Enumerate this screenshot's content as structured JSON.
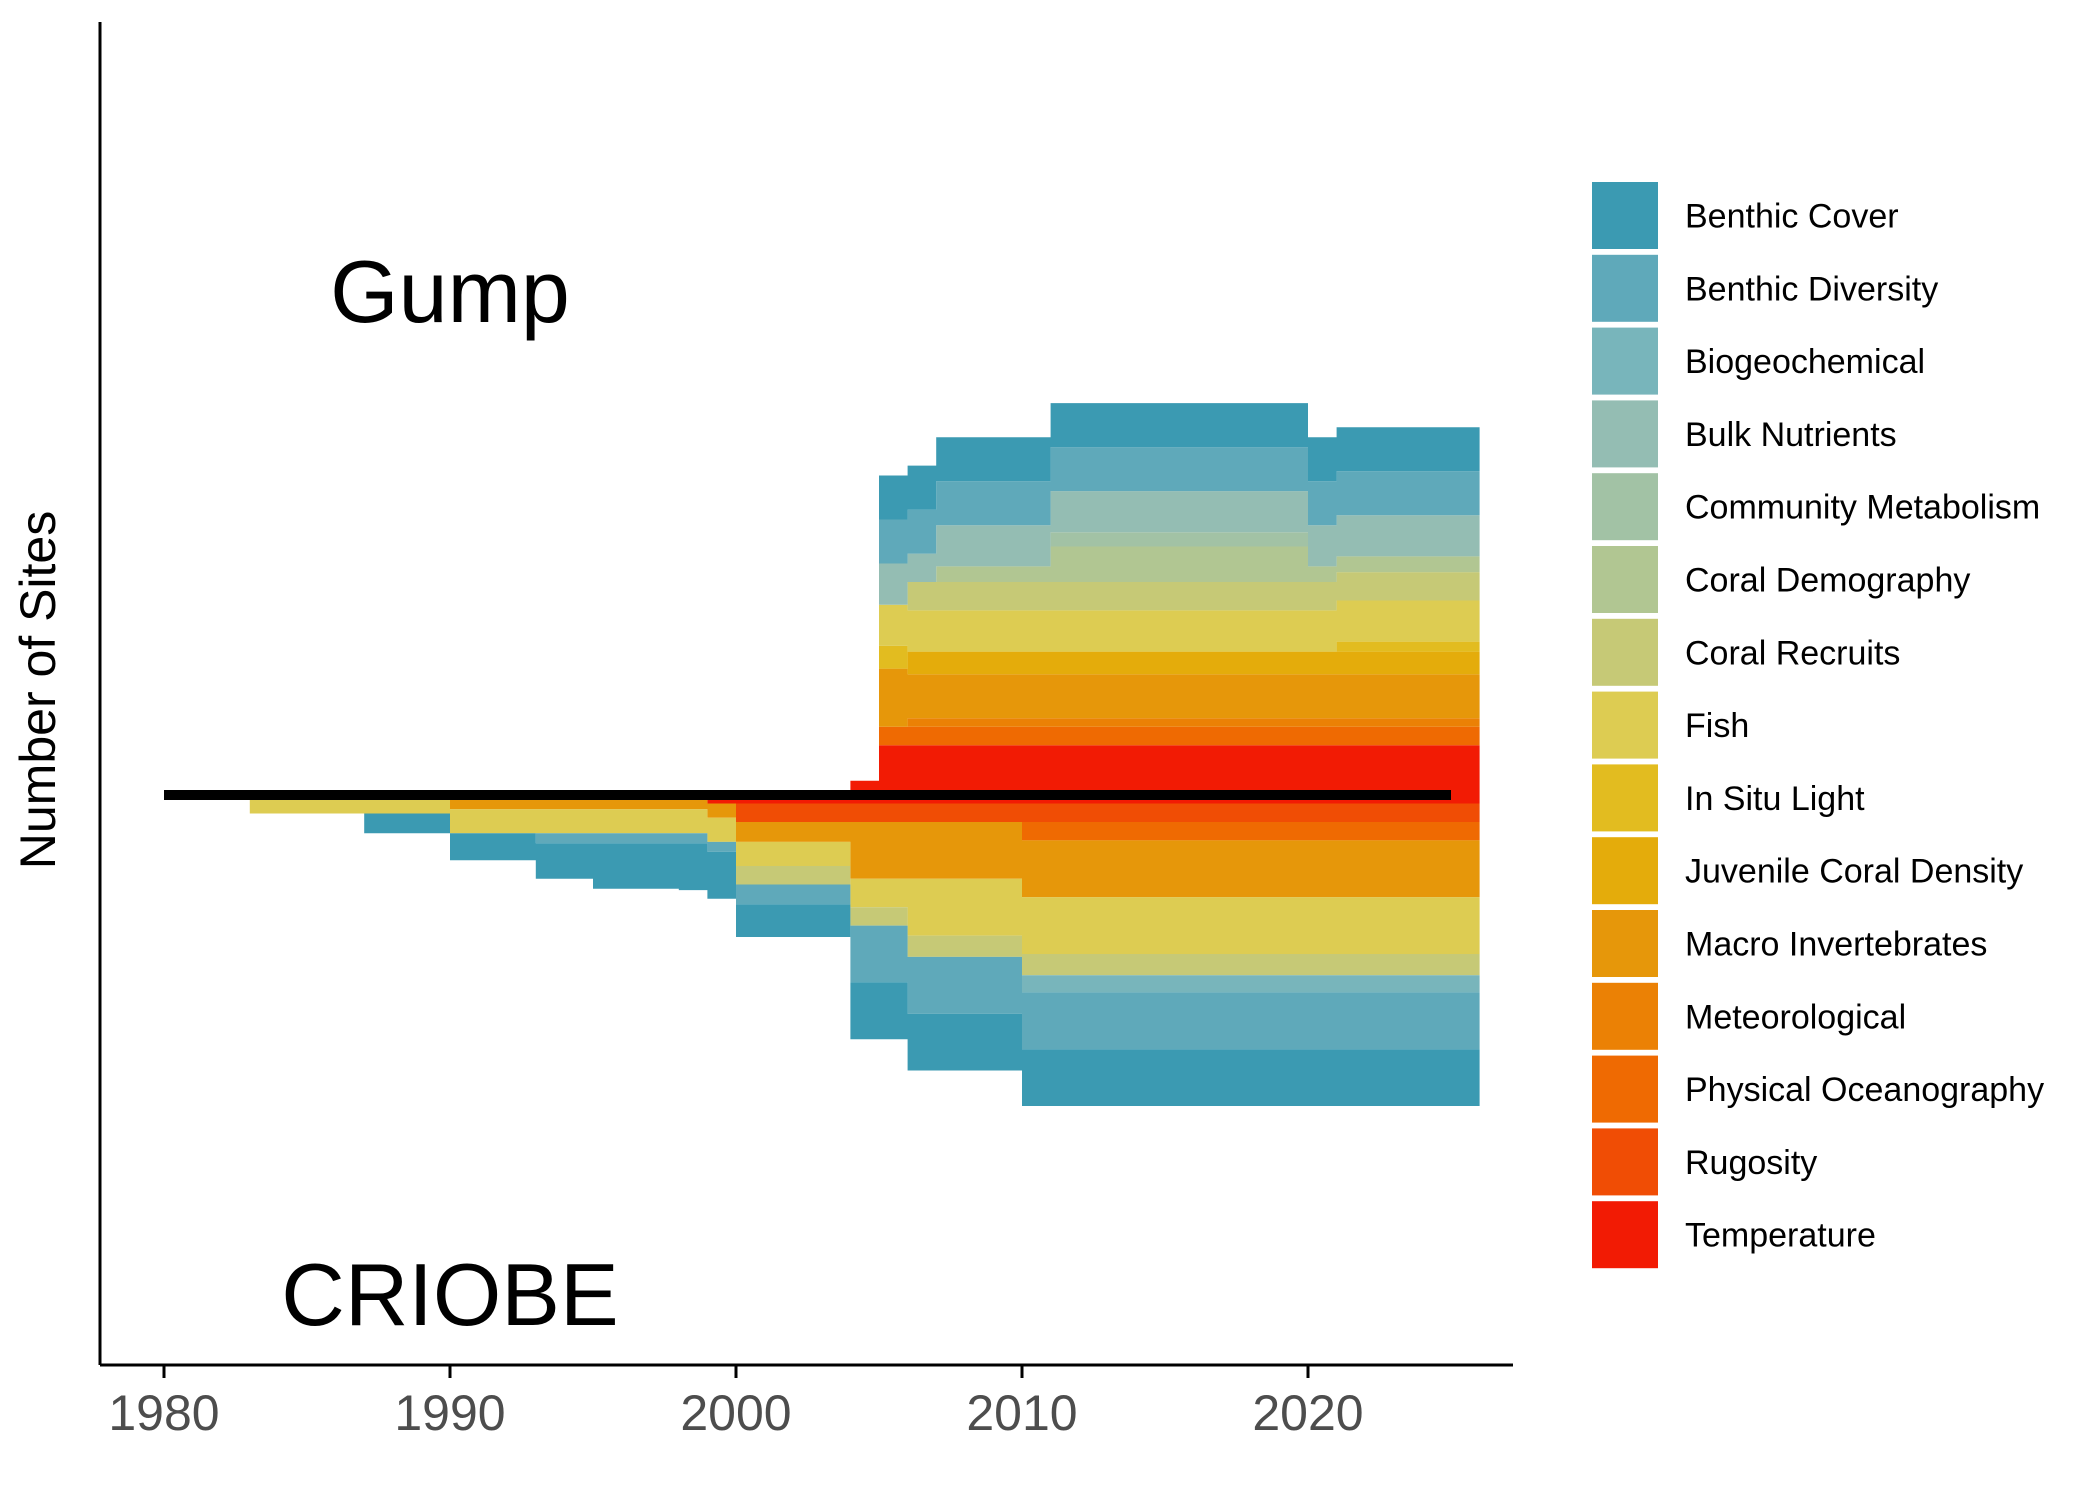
{
  "chart_data": {
    "type": "area",
    "subtype": "mirrored stacked step area",
    "title": "",
    "xlabel": "",
    "ylabel": "Number of Sites",
    "xlim": [
      1977.5,
      2027.5
    ],
    "xticks": [
      1980,
      1990,
      2000,
      2010,
      2020
    ],
    "ylim": [
      -50,
      50
    ],
    "ytick_labels_shown": false,
    "grid": false,
    "legend_position": "right",
    "baseline": {
      "y": 0,
      "x_start": 1980,
      "x_end": 2025
    },
    "annotations": [
      {
        "text": "Gump",
        "region": "upper"
      },
      {
        "text": "CRIOBE",
        "region": "lower"
      }
    ],
    "legend": [
      {
        "name": "Benthic Cover",
        "color": "#3b9ab2"
      },
      {
        "name": "Benthic Diversity",
        "color": "#5fa9ba"
      },
      {
        "name": "Biogeochemical",
        "color": "#78b5bb"
      },
      {
        "name": "Bulk Nutrients",
        "color": "#94bdb3"
      },
      {
        "name": "Community Metabolism",
        "color": "#a2c2a5"
      },
      {
        "name": "Coral Demography",
        "color": "#b1c692"
      },
      {
        "name": "Coral Recruits",
        "color": "#c6c976"
      },
      {
        "name": "Fish",
        "color": "#ddcc52"
      },
      {
        "name": "In Situ Light",
        "color": "#e2bc20"
      },
      {
        "name": "Juvenile Coral Density",
        "color": "#e4ac0b"
      },
      {
        "name": "Macro Invertebrates",
        "color": "#e6970a"
      },
      {
        "name": "Meteorological",
        "color": "#eb8105"
      },
      {
        "name": "Physical Oceanography",
        "color": "#ef6a02"
      },
      {
        "name": "Rugosity",
        "color": "#f04d05"
      },
      {
        "name": "Temperature",
        "color": "#f21b04"
      }
    ],
    "panels": [
      {
        "name": "Gump",
        "direction": "up",
        "x": [
          2004,
          2005,
          2006,
          2007,
          2008,
          2009,
          2010,
          2011,
          2012,
          2013,
          2014,
          2015,
          2016,
          2017,
          2018,
          2019,
          2020,
          2021,
          2022,
          2023,
          2024,
          2025
        ],
        "series": [
          {
            "name": "Temperature",
            "values": [
              1,
              3.5,
              3.5,
              3.5,
              3.5,
              3.5,
              3.5,
              3.5,
              3.5,
              3.5,
              3.5,
              3.5,
              3.5,
              3.5,
              3.5,
              3.5,
              3.5,
              3.5,
              3.5,
              3.5,
              3.5,
              3.5
            ]
          },
          {
            "name": "Physical Oceanography",
            "values": [
              0,
              1.3,
              1.3,
              1.3,
              1.3,
              1.3,
              1.3,
              1.3,
              1.3,
              1.3,
              1.3,
              1.3,
              1.3,
              1.3,
              1.3,
              1.3,
              1.3,
              1.3,
              1.3,
              1.3,
              1.3,
              1.3
            ]
          },
          {
            "name": "Meteorological",
            "values": [
              0,
              0,
              0.6,
              0.6,
              0.6,
              0.6,
              0.6,
              0.6,
              0.6,
              0.6,
              0.6,
              0.6,
              0.6,
              0.6,
              0.6,
              0.6,
              0.6,
              0.6,
              0.6,
              0.6,
              0.6,
              0.6
            ]
          },
          {
            "name": "Macro Invertebrates",
            "values": [
              0,
              4.1,
              3.1,
              3.1,
              3.1,
              3.1,
              3.1,
              3.1,
              3.1,
              3.1,
              3.1,
              3.1,
              3.1,
              3.1,
              3.1,
              3.1,
              3.1,
              3.1,
              3.1,
              3.1,
              3.1,
              3.1
            ]
          },
          {
            "name": "Juvenile Coral Density",
            "values": [
              0,
              0,
              1.6,
              1.6,
              1.6,
              1.6,
              1.6,
              1.6,
              1.6,
              1.6,
              1.6,
              1.6,
              1.6,
              1.6,
              1.6,
              1.6,
              1.6,
              1.6,
              1.6,
              1.6,
              1.6,
              1.6
            ]
          },
          {
            "name": "In Situ Light",
            "values": [
              0,
              1.6,
              0,
              0,
              0,
              0,
              0,
              0,
              0,
              0,
              0,
              0,
              0,
              0,
              0,
              0,
              0,
              0.7,
              0.7,
              0.7,
              0.7,
              0.7
            ]
          },
          {
            "name": "Fish",
            "values": [
              0,
              2.9,
              2.9,
              2.9,
              2.9,
              2.9,
              2.9,
              2.9,
              2.9,
              2.9,
              2.9,
              2.9,
              2.9,
              2.9,
              2.9,
              2.9,
              2.9,
              2.9,
              2.9,
              2.9,
              2.9,
              2.9
            ]
          },
          {
            "name": "Coral Recruits",
            "values": [
              0,
              0,
              2,
              2,
              2,
              2,
              2,
              2,
              2,
              2,
              2,
              2,
              2,
              2,
              2,
              2,
              2,
              2,
              2,
              2,
              2,
              2
            ]
          },
          {
            "name": "Coral Demography",
            "values": [
              0,
              0,
              0,
              1.1,
              1.1,
              1.1,
              1.1,
              2.5,
              2.5,
              2.5,
              2.5,
              2.5,
              2.5,
              2.5,
              2.5,
              2.5,
              1.1,
              1.1,
              1.1,
              1.1,
              1.1,
              1.1
            ]
          },
          {
            "name": "Community Metabolism",
            "values": [
              0,
              0,
              0,
              0,
              0,
              0,
              0,
              1,
              1,
              1,
              1,
              1,
              1,
              1,
              1,
              1,
              0,
              0,
              0,
              0,
              0,
              0
            ]
          },
          {
            "name": "Bulk Nutrients",
            "values": [
              0,
              2.9,
              2,
              2.9,
              2.9,
              2.9,
              2.9,
              2.9,
              2.9,
              2.9,
              2.9,
              2.9,
              2.9,
              2.9,
              2.9,
              2.9,
              2.9,
              2.9,
              2.9,
              2.9,
              2.9,
              2.9
            ]
          },
          {
            "name": "Biogeochemical",
            "values": [
              0,
              0,
              0,
              0,
              0,
              0,
              0,
              0,
              0,
              0,
              0,
              0,
              0,
              0,
              0,
              0,
              0,
              0,
              0,
              0,
              0,
              0
            ]
          },
          {
            "name": "Benthic Diversity",
            "values": [
              0,
              3.1,
              3.1,
              3.1,
              3.1,
              3.1,
              3.1,
              3.1,
              3.1,
              3.1,
              3.1,
              3.1,
              3.1,
              3.1,
              3.1,
              3.1,
              3.1,
              3.1,
              3.1,
              3.1,
              3.1,
              3.1
            ]
          },
          {
            "name": "Benthic Cover",
            "values": [
              0,
              3.1,
              3.1,
              3.1,
              3.1,
              3.1,
              3.1,
              3.1,
              3.1,
              3.1,
              3.1,
              3.1,
              3.1,
              3.1,
              3.1,
              3.1,
              3.1,
              3.1,
              3.1,
              3.1,
              3.1,
              3.1
            ]
          }
        ]
      },
      {
        "name": "CRIOBE",
        "direction": "down",
        "x": [
          1983,
          1984,
          1985,
          1986,
          1987,
          1988,
          1989,
          1990,
          1991,
          1992,
          1993,
          1994,
          1995,
          1996,
          1997,
          1998,
          1999,
          2000,
          2001,
          2002,
          2003,
          2004,
          2005,
          2006,
          2007,
          2008,
          2009,
          2010,
          2011,
          2012,
          2013,
          2014,
          2015,
          2016,
          2017,
          2018,
          2019,
          2020,
          2021,
          2022,
          2023,
          2024,
          2025
        ],
        "series": [
          {
            "name": "Temperature",
            "values": [
              0,
              0,
              0,
              0,
              0,
              0,
              0,
              0,
              0,
              0,
              0,
              0,
              0,
              0,
              0,
              0,
              0.6,
              0.6,
              0.6,
              0.6,
              0.6,
              0.6,
              0.6,
              0.6,
              0.6,
              0.6,
              0.6,
              0.6,
              0.6,
              0.6,
              0.6,
              0.6,
              0.6,
              0.6,
              0.6,
              0.6,
              0.6,
              0.6,
              0.6,
              0.6,
              0.6,
              0.6,
              0.6
            ]
          },
          {
            "name": "Rugosity",
            "values": [
              0,
              0,
              0,
              0,
              0,
              0,
              0,
              0,
              0,
              0,
              0,
              0,
              0,
              0,
              0,
              0,
              0,
              1.3,
              1.3,
              1.3,
              1.3,
              1.3,
              1.3,
              1.3,
              1.3,
              1.3,
              1.3,
              1.3,
              1.3,
              1.3,
              1.3,
              1.3,
              1.3,
              1.3,
              1.3,
              1.3,
              1.3,
              1.3,
              1.3,
              1.3,
              1.3,
              1.3,
              1.3
            ]
          },
          {
            "name": "Physical Oceanography",
            "values": [
              0,
              0,
              0,
              0,
              0,
              0,
              0,
              0,
              0,
              0,
              0,
              0,
              0,
              0,
              0,
              0,
              0,
              0,
              0,
              0,
              0,
              0,
              0,
              0,
              0,
              0,
              0,
              1.3,
              1.3,
              1.3,
              1.3,
              1.3,
              1.3,
              1.3,
              1.3,
              1.3,
              1.3,
              1.3,
              1.3,
              1.3,
              1.3,
              1.3,
              1.3
            ]
          },
          {
            "name": "Macro Invertebrates",
            "values": [
              0,
              0,
              0,
              0,
              0,
              0,
              0,
              1,
              1,
              1,
              1,
              1,
              1,
              1,
              1,
              1,
              1,
              1.4,
              1.4,
              1.4,
              1.4,
              4,
              4,
              4,
              4,
              4,
              4,
              4,
              4,
              4,
              4,
              4,
              4,
              4,
              4,
              4,
              4,
              4,
              4,
              4,
              4,
              4,
              4
            ]
          },
          {
            "name": "Fish",
            "values": [
              1.3,
              1.3,
              1.3,
              1.3,
              1.3,
              1.3,
              1.3,
              1.7,
              1.7,
              1.7,
              1.7,
              1.7,
              1.7,
              1.7,
              1.7,
              1.7,
              1.7,
              1.7,
              1.7,
              1.7,
              1.7,
              2,
              2,
              4,
              4,
              4,
              4,
              4,
              4,
              4,
              4,
              4,
              4,
              4,
              4,
              4,
              4,
              4,
              4,
              4,
              4,
              4,
              4
            ]
          },
          {
            "name": "Coral Recruits",
            "values": [
              0,
              0,
              0,
              0,
              0,
              0,
              0,
              0,
              0,
              0,
              0,
              0,
              0,
              0,
              0,
              0,
              0,
              1.3,
              1.3,
              1.3,
              1.3,
              1.3,
              1.3,
              1.5,
              1.5,
              1.5,
              1.5,
              1.5,
              1.5,
              1.5,
              1.5,
              1.5,
              1.5,
              1.5,
              1.5,
              1.5,
              1.5,
              1.5,
              1.5,
              1.5,
              1.5,
              1.5,
              1.5
            ]
          },
          {
            "name": "Biogeochemical",
            "values": [
              0,
              0,
              0,
              0,
              0,
              0,
              0,
              0,
              0,
              0,
              0,
              0,
              0,
              0,
              0,
              0,
              0,
              0,
              0,
              0,
              0,
              0,
              0,
              0,
              0,
              0,
              0,
              1.2,
              1.2,
              1.2,
              1.2,
              1.2,
              1.2,
              1.2,
              1.2,
              1.2,
              1.2,
              1.2,
              1.2,
              1.2,
              1.2,
              1.2,
              1.2
            ]
          },
          {
            "name": "Benthic Diversity",
            "values": [
              0,
              0,
              0,
              0,
              0,
              0,
              0,
              0,
              0,
              0,
              0.7,
              0.7,
              0.7,
              0.7,
              0.7,
              0.7,
              0.7,
              1.4,
              1.4,
              1.4,
              1.4,
              4,
              4,
              4,
              4,
              4,
              4,
              4,
              4,
              4,
              4,
              4,
              4,
              4,
              4,
              4,
              4,
              4,
              4,
              4,
              4,
              4,
              4
            ]
          },
          {
            "name": "Benthic Cover",
            "values": [
              0,
              0,
              0,
              0,
              1.4,
              1.4,
              1.4,
              1.9,
              1.9,
              1.9,
              2.5,
              2.5,
              3.2,
              3.2,
              3.2,
              3.3,
              3.3,
              2.3,
              2.3,
              2.3,
              2.3,
              4,
              4,
              4,
              4,
              4,
              4,
              4,
              4,
              4,
              4,
              4,
              4,
              4,
              4,
              4,
              4,
              4,
              4,
              4,
              4,
              4,
              4
            ]
          }
        ]
      }
    ]
  }
}
